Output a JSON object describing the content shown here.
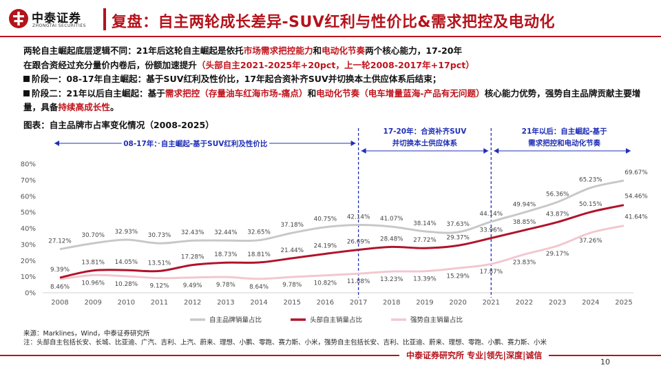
{
  "header": {
    "logo_cn": "中泰证券",
    "logo_en": "ZHONGTAI SECURITIES",
    "title": "复盘：自主两轮成长差异-SUV红利与性价比&需求把控及电动化"
  },
  "body": {
    "line1_a": "两轮自主崛起底层逻辑不同：21年后这轮自主崛起是依托",
    "line1_red1": "市场需求把控能力",
    "line1_b": "和",
    "line1_red2": "电动化节奏",
    "line1_c": "两个核心能力，17-20年",
    "line2_a": "在跟合资经过充分量价内卷后，份额加速提升",
    "line2_red": "（头部自主2021-2025年+20pct，上一轮2008-2017年+17pct）",
    "phase1_head": "阶段一：08-17年自主崛起：",
    "phase1_text": "基于SUV红利及性价比，17年起合资补齐SUV并切换本土供应体系后结束；",
    "phase2_head": "阶段二：21年以后自主崛起：",
    "phase2_text_a": "基于",
    "phase2_red1": "需求把控（存量油车红海市场-痛点）",
    "phase2_text_b": "和",
    "phase2_red2": "电动化节奏（电车增量蓝海-产品有无问题）",
    "phase2_text_c": "核心能力优势，强势自主品牌贡献主要增量，具备",
    "phase2_red3": "持续高成长性",
    "phase2_text_d": "。"
  },
  "figure_title": "图表：自主品牌市占率变化情况（2008-2025）",
  "colors": {
    "brand_red": "#b5121b",
    "series_gray": "#c8c8c8",
    "series_darkred": "#b0132b",
    "series_pink": "#f2c7d0",
    "annotation_blue": "#1f2fb5"
  },
  "chart_data": {
    "type": "line",
    "title": "自主品牌市占率变化情况（2008-2025）",
    "categories": [
      "2008",
      "2009",
      "2010",
      "2011",
      "2012",
      "2013",
      "2014",
      "2015",
      "2016",
      "2017",
      "2018",
      "2019",
      "2020",
      "2021",
      "2022",
      "2023",
      "2024",
      "2025"
    ],
    "ylim": [
      0,
      80
    ],
    "yticks": [
      "0%",
      "10%",
      "20%",
      "30%",
      "40%",
      "50%",
      "60%",
      "70%",
      "80%"
    ],
    "series": [
      {
        "name": "自主品牌销量占比",
        "values": [
          27.12,
          30.7,
          32.93,
          30.73,
          32.43,
          32.44,
          32.65,
          37.18,
          40.75,
          42.14,
          41.07,
          38.14,
          37.63,
          44.14,
          49.94,
          56.36,
          65.23,
          69.67
        ],
        "labels": [
          "27.12%",
          "30.70%",
          "32.93%",
          "30.73%",
          "32.43%",
          "32.44%",
          "32.65%",
          "37.18%",
          "40.75%",
          "42.14%",
          "41.07%",
          "38.14%",
          "37.63%",
          "44.14%",
          "49.94%",
          "56.36%",
          "65.23%",
          "69.67%"
        ]
      },
      {
        "name": "头部自主销量占比",
        "values": [
          9.39,
          13.81,
          14.05,
          13.51,
          17.28,
          18.73,
          18.81,
          21.44,
          24.19,
          26.69,
          28.48,
          27.72,
          29.37,
          33.96,
          38.85,
          43.87,
          50.15,
          54.46
        ],
        "labels": [
          "9.39%",
          "13.81%",
          "14.05%",
          "13.51%",
          "17.28%",
          "18.73%",
          "18.81%",
          "21.44%",
          "24.19%",
          "26.69%",
          "28.48%",
          "27.72%",
          "29.37%",
          "33.96%",
          "38.85%",
          "43.87%",
          "50.15%",
          "54.46%"
        ]
      },
      {
        "name": "强势自主销量占比",
        "values": [
          8.46,
          10.96,
          10.28,
          9.12,
          9.49,
          9.78,
          8.64,
          9.78,
          10.82,
          11.88,
          13.23,
          13.39,
          15.29,
          17.87,
          23.83,
          29.17,
          37.26,
          41.64
        ],
        "labels": [
          "8.46%",
          "10.96%",
          "10.28%",
          "9.12%",
          "9.49%",
          "9.78%",
          "8.64%",
          "9.78%",
          "10.82%",
          "11.88%",
          "13.23%",
          "13.39%",
          "15.29%",
          "17.87%",
          "23.83%",
          "29.17%",
          "37.26%",
          "41.64%"
        ]
      }
    ],
    "annotations": [
      {
        "text": "08-17年：自主崛起-基于SUV红利及性价比",
        "span": [
          "2008",
          "2017"
        ]
      },
      {
        "text_line1": "17-20年：合资补齐SUV",
        "text_line2": "并切换本土供应体系",
        "span": [
          "2017",
          "2021"
        ]
      },
      {
        "text_line1": "21年以后：自主崛起-基于",
        "text_line2": "需求把控和电动化节奏",
        "span": [
          "2021",
          "2025"
        ]
      }
    ],
    "dashed_dividers": [
      "2017",
      "2021"
    ]
  },
  "source": "来源：Marklines，Wind，中泰证券研究所",
  "note": "注：头部自主包括长安、长城、比亚迪、广汽、吉利、上汽、蔚来、理想、小鹏、零跑、赛力斯、小米，强势自主包括长安、吉利、比亚迪、蔚来、理想、零跑、小鹏、赛力斯、小米",
  "footer": {
    "text": "中泰证券研究所 专业|领先|深度|诚信",
    "page": "10"
  }
}
